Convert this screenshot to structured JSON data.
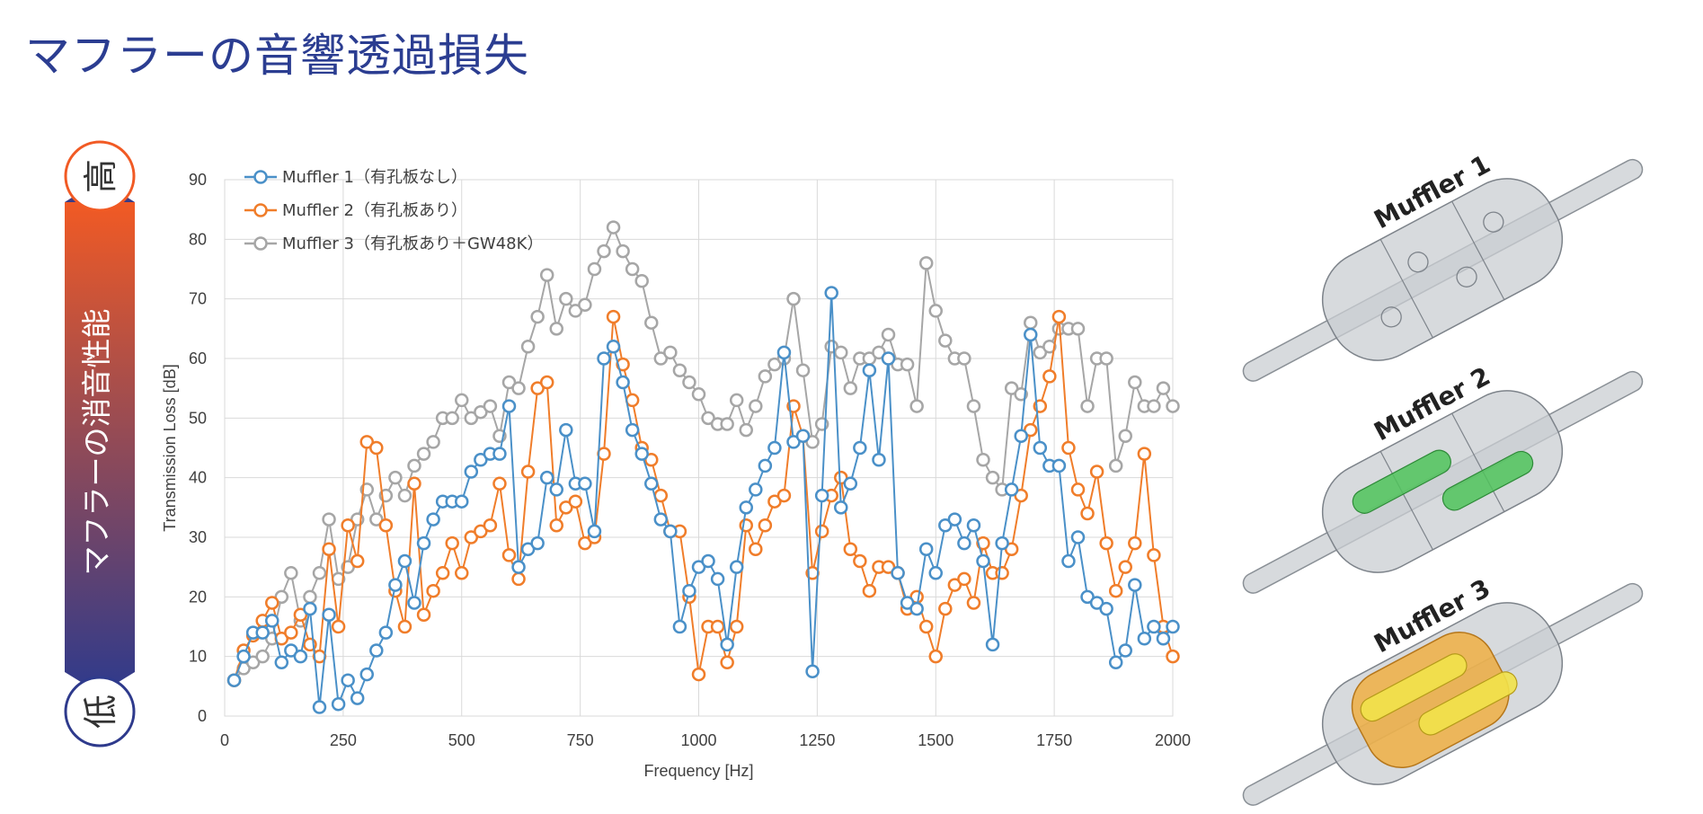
{
  "page": {
    "title": "マフラーの音響透過損失"
  },
  "scale_bar": {
    "high_label": "高",
    "low_label": "低",
    "caption": "マフラーの消音性能",
    "colors": {
      "top": "#f15a24",
      "bottom": "#2e3a8c"
    }
  },
  "mufflers": {
    "labels": [
      "Muffler 1",
      "Muffler 2",
      "Muffler 3"
    ],
    "colors": {
      "body": "#c9cdd1",
      "perforated_tube": "#4fc35a",
      "glass_wool": "#f5a623"
    }
  },
  "chart_data": {
    "type": "line",
    "xlabel": "Frequency [Hz]",
    "ylabel": "Transmission Loss [dB]",
    "xlim": [
      0,
      2000
    ],
    "ylim": [
      0,
      90
    ],
    "xticks": [
      0,
      250,
      500,
      750,
      1000,
      1250,
      1500,
      1750,
      2000
    ],
    "yticks": [
      0,
      10,
      20,
      30,
      40,
      50,
      60,
      70,
      80,
      90
    ],
    "grid": true,
    "legend_position": "top-left",
    "series": [
      {
        "name": "Muffler 1（有孔板なし）",
        "color": "#4a90c8",
        "x": [
          20,
          40,
          60,
          80,
          100,
          120,
          140,
          160,
          180,
          200,
          220,
          240,
          260,
          280,
          300,
          320,
          340,
          360,
          380,
          400,
          420,
          440,
          460,
          480,
          500,
          520,
          540,
          560,
          580,
          600,
          620,
          640,
          660,
          680,
          700,
          720,
          740,
          760,
          780,
          800,
          820,
          840,
          860,
          880,
          900,
          920,
          940,
          960,
          980,
          1000,
          1020,
          1040,
          1060,
          1080,
          1100,
          1120,
          1140,
          1160,
          1180,
          1200,
          1220,
          1240,
          1260,
          1280,
          1300,
          1320,
          1340,
          1360,
          1380,
          1400,
          1420,
          1440,
          1460,
          1480,
          1500,
          1520,
          1540,
          1560,
          1580,
          1600,
          1620,
          1640,
          1660,
          1680,
          1700,
          1720,
          1740,
          1760,
          1780,
          1800,
          1820,
          1840,
          1860,
          1880,
          1900,
          1920,
          1940,
          1960,
          1980,
          2000
        ],
        "y": [
          6,
          10,
          14,
          14,
          16,
          9,
          11,
          10,
          18,
          1.5,
          17,
          2,
          6,
          3,
          7,
          11,
          14,
          22,
          26,
          19,
          29,
          33,
          36,
          36,
          36,
          41,
          43,
          44,
          44,
          52,
          25,
          28,
          29,
          40,
          38,
          48,
          39,
          39,
          31,
          60,
          62,
          56,
          48,
          44,
          39,
          33,
          31,
          15,
          21,
          25,
          26,
          23,
          12,
          25,
          35,
          38,
          42,
          45,
          61,
          46,
          47,
          7.5,
          37,
          71,
          35,
          39,
          45,
          58,
          43,
          60,
          24,
          19,
          18,
          28,
          24,
          32,
          33,
          29,
          32,
          26,
          12,
          29,
          38,
          47,
          64,
          45,
          42,
          42,
          26,
          30,
          20,
          19,
          18,
          9,
          11,
          22,
          13,
          15,
          13,
          15
        ]
      },
      {
        "name": "Muffler 2（有孔板あり）",
        "color": "#f07d2a",
        "x": [
          20,
          40,
          60,
          80,
          100,
          120,
          140,
          160,
          180,
          200,
          220,
          240,
          260,
          280,
          300,
          320,
          340,
          360,
          380,
          400,
          420,
          440,
          460,
          480,
          500,
          520,
          540,
          560,
          580,
          600,
          620,
          640,
          660,
          680,
          700,
          720,
          740,
          760,
          780,
          800,
          820,
          840,
          860,
          880,
          900,
          920,
          940,
          960,
          980,
          1000,
          1020,
          1040,
          1060,
          1080,
          1100,
          1120,
          1140,
          1160,
          1180,
          1200,
          1220,
          1240,
          1260,
          1280,
          1300,
          1320,
          1340,
          1360,
          1380,
          1400,
          1420,
          1440,
          1460,
          1480,
          1500,
          1520,
          1540,
          1560,
          1580,
          1600,
          1620,
          1640,
          1660,
          1680,
          1700,
          1720,
          1740,
          1760,
          1780,
          1800,
          1820,
          1840,
          1860,
          1880,
          1900,
          1920,
          1940,
          1960,
          1980,
          2000
        ],
        "y": [
          6,
          11,
          13.5,
          16,
          19,
          13,
          14,
          17,
          12,
          10,
          28,
          15,
          32,
          26,
          46,
          45,
          32,
          21,
          15,
          39,
          17,
          21,
          24,
          29,
          24,
          30,
          31,
          32,
          39,
          27,
          23,
          41,
          55,
          56,
          32,
          35,
          36,
          29,
          30,
          44,
          67,
          59,
          53,
          45,
          43,
          37,
          31,
          31,
          20,
          7,
          15,
          15,
          9,
          15,
          32,
          28,
          32,
          36,
          37,
          52,
          47,
          24,
          31,
          37,
          40,
          28,
          26,
          21,
          25,
          25,
          24,
          18,
          20,
          15,
          10,
          18,
          22,
          23,
          19,
          29,
          24,
          24,
          28,
          37,
          48,
          52,
          57,
          67,
          45,
          38,
          34,
          41,
          29,
          21,
          25,
          29,
          44,
          27,
          15,
          10
        ]
      },
      {
        "name": "Muffler 3（有孔板あり＋GW48K）",
        "color": "#a6a6a6",
        "x": [
          20,
          40,
          60,
          80,
          100,
          120,
          140,
          160,
          180,
          200,
          220,
          240,
          260,
          280,
          300,
          320,
          340,
          360,
          380,
          400,
          420,
          440,
          460,
          480,
          500,
          520,
          540,
          560,
          580,
          600,
          620,
          640,
          660,
          680,
          700,
          720,
          740,
          760,
          780,
          800,
          820,
          840,
          860,
          880,
          900,
          920,
          940,
          960,
          980,
          1000,
          1020,
          1040,
          1060,
          1080,
          1100,
          1120,
          1140,
          1160,
          1180,
          1200,
          1220,
          1240,
          1260,
          1280,
          1300,
          1320,
          1340,
          1360,
          1380,
          1400,
          1420,
          1440,
          1460,
          1480,
          1500,
          1520,
          1540,
          1560,
          1580,
          1600,
          1620,
          1640,
          1660,
          1680,
          1700,
          1720,
          1740,
          1760,
          1780,
          1800,
          1820,
          1840,
          1860,
          1880,
          1900,
          1920,
          1940,
          1960,
          1980,
          2000
        ],
        "y": [
          6,
          8,
          9,
          10,
          13,
          20,
          24,
          16,
          20,
          24,
          33,
          23,
          25,
          33,
          38,
          33,
          37,
          40,
          37,
          42,
          44,
          46,
          50,
          50,
          53,
          50,
          51,
          52,
          47,
          56,
          55,
          62,
          67,
          74,
          65,
          70,
          68,
          69,
          75,
          78,
          82,
          78,
          75,
          73,
          66,
          60,
          61,
          58,
          56,
          54,
          50,
          49,
          49,
          53,
          48,
          52,
          57,
          59,
          60,
          70,
          58,
          46,
          49,
          62,
          61,
          55,
          60,
          60,
          61,
          64,
          59,
          59,
          52,
          76,
          68,
          63,
          60,
          60,
          52,
          43,
          40,
          38,
          55,
          54,
          66,
          61,
          62,
          65,
          65,
          65,
          52,
          60,
          60,
          42,
          47,
          56,
          52,
          52,
          55,
          52
        ]
      }
    ]
  }
}
